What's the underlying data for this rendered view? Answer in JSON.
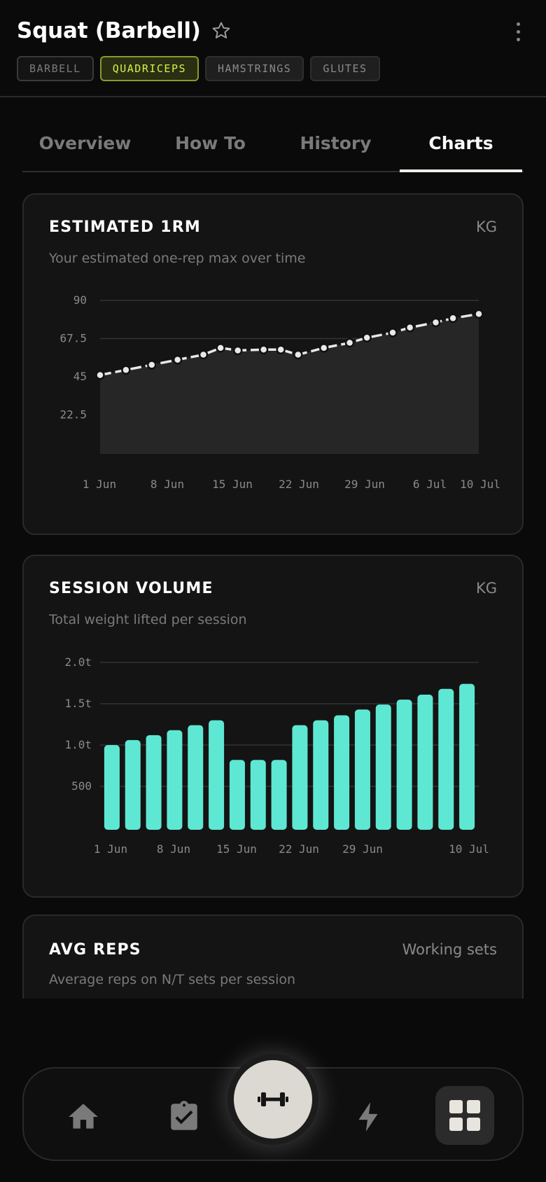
{
  "exercise": {
    "title": "Squat (Barbell)",
    "chips": [
      {
        "label": "BARBELL",
        "state": "outlined"
      },
      {
        "label": "QUADRICEPS",
        "state": "active"
      },
      {
        "label": "HAMSTRINGS",
        "state": "default"
      },
      {
        "label": "GLUTES",
        "state": "default"
      }
    ]
  },
  "tabs": [
    {
      "label": "Overview",
      "active": false
    },
    {
      "label": "How To",
      "active": false
    },
    {
      "label": "History",
      "active": false
    },
    {
      "label": "Charts",
      "active": true
    }
  ],
  "cards": {
    "estimated_1rm": {
      "title": "ESTIMATED 1RM",
      "unit": "KG",
      "subtitle": "Your estimated one-rep max over time"
    },
    "session_volume": {
      "title": "SESSION VOLUME",
      "unit": "KG",
      "subtitle": "Total weight lifted per session"
    },
    "avg_reps": {
      "title": "AVG REPS",
      "unit": "Working sets",
      "subtitle": "Average reps on N/T sets per session"
    }
  },
  "chart_data": [
    {
      "type": "area",
      "series": [
        {
          "x": [
            "2024-06-01",
            "2024-06-04",
            "2024-06-07",
            "2024-06-10",
            "2024-06-13",
            "2024-06-15",
            "2024-06-17",
            "2024-06-20",
            "2024-06-22",
            "2024-06-24",
            "2024-06-27",
            "2024-06-30",
            "2024-07-02",
            "2024-07-05",
            "2024-07-07",
            "2024-07-10",
            "2024-07-12",
            "2024-07-15"
          ],
          "values": [
            46,
            49,
            52,
            55,
            58,
            62,
            60.5,
            61,
            61,
            58,
            62,
            65,
            68,
            71,
            74,
            77,
            79.5,
            82
          ]
        }
      ],
      "ylim": [
        0,
        90
      ],
      "yticks": [
        "22.5",
        "45",
        "67.5",
        "90"
      ],
      "xticks": [
        "1 Jun",
        "8 Jun",
        "15 Jun",
        "22 Jun",
        "29 Jun",
        "6 Jul",
        "10 Jul"
      ],
      "grid": true,
      "colors": {
        "line": "#e8e8e8",
        "fill": "#262626",
        "marker": "#e8e8e8"
      }
    },
    {
      "type": "bar",
      "values": [
        1000,
        1060,
        1120,
        1180,
        1240,
        1300,
        820,
        820,
        820,
        1240,
        1300,
        1360,
        1430,
        1490,
        1550,
        1610,
        1680,
        1740
      ],
      "ylim": [
        0,
        2000
      ],
      "yticks": [
        "500",
        "1.0t",
        "1.5t",
        "2.0t"
      ],
      "xticks": [
        "1 Jun",
        "8 Jun",
        "15 Jun",
        "22 Jun",
        "29 Jun",
        "10 Jul"
      ],
      "grid": true,
      "colors": {
        "bar": "#5ee8d3"
      }
    }
  ],
  "nav": {
    "items": [
      "home-icon",
      "clipboard-check-icon",
      "dumbbell-icon",
      "lightning-icon",
      "grid-icon"
    ],
    "active": "grid-icon"
  }
}
